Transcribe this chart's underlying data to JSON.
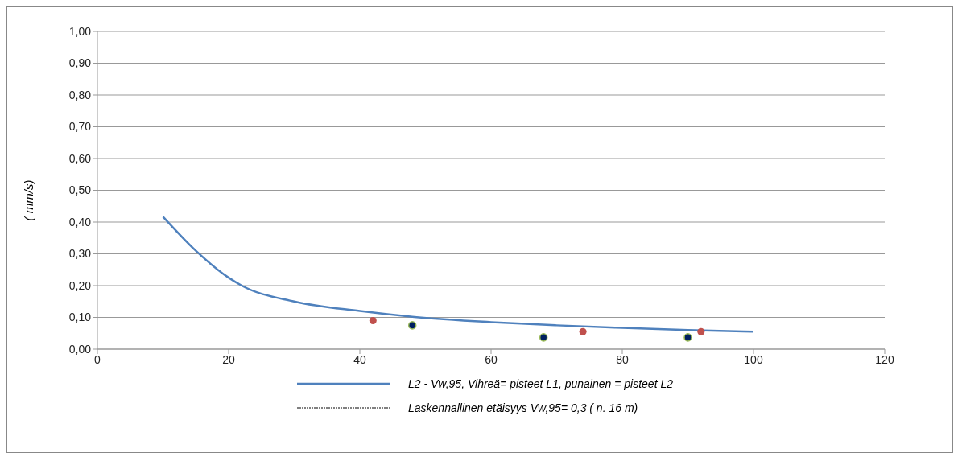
{
  "chart_data": {
    "type": "line",
    "ylabel": "( mm/s)",
    "xlim": [
      0,
      120
    ],
    "xticks": [
      0,
      20,
      40,
      60,
      80,
      100,
      120
    ],
    "ylim": [
      0,
      1
    ],
    "yticks": [
      {
        "value": 0,
        "label": "0,00"
      },
      {
        "value": 0.1,
        "label": "0,10"
      },
      {
        "value": 0.2,
        "label": "0,20"
      },
      {
        "value": 0.3,
        "label": "0,30"
      },
      {
        "value": 0.4,
        "label": "0,40"
      },
      {
        "value": 0.5,
        "label": "0,50"
      },
      {
        "value": 0.6,
        "label": "0,60"
      },
      {
        "value": 0.7,
        "label": "0,70"
      },
      {
        "value": 0.8,
        "label": "0,80"
      },
      {
        "value": 0.9,
        "label": "0,90"
      },
      {
        "value": 1,
        "label": "1,00"
      }
    ],
    "grid": "y",
    "legend": "bottom",
    "series": [
      {
        "name": "L2 - Vw,95, Vihreä= pisteet L1, punainen = pisteet L2",
        "color": "#4f81bd",
        "marker": "none",
        "line_style": "solid",
        "x": [
          10,
          15,
          20,
          22,
          30,
          40,
          48,
          60,
          70,
          80,
          90,
          100
        ],
        "values": [
          0.417,
          0.31,
          0.225,
          0.2,
          0.15,
          0.12,
          0.102,
          0.085,
          0.075,
          0.067,
          0.06,
          0.055
        ]
      },
      {
        "name": "Laskennallinen etäisyys Vw,95= 0,3 ( n. 16 m)",
        "color": "#000000",
        "marker": "none",
        "line_style": "dashed"
      },
      {
        "type": "scatter",
        "color": "#002060",
        "marker": "circle",
        "x": [
          48,
          68,
          90
        ],
        "values": [
          0.075,
          0.037,
          0.037
        ]
      },
      {
        "type": "scatter",
        "color": "#c0504d",
        "marker": "circle",
        "x": [
          42,
          74,
          92
        ],
        "values": [
          0.09,
          0.055,
          0.055
        ]
      }
    ]
  }
}
